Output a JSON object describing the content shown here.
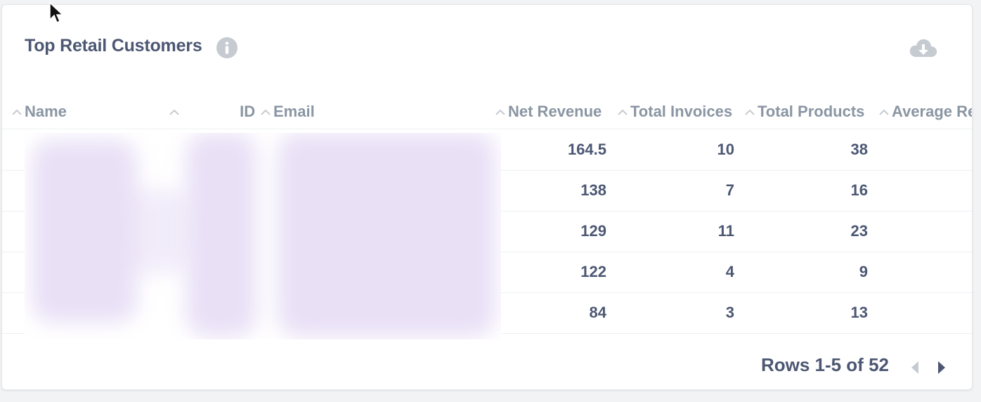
{
  "card": {
    "title": "Top Retail Customers"
  },
  "icons": {
    "info": "info-icon",
    "download": "download-icon",
    "sort": "chevron-up-icon",
    "prev": "triangle-left-icon",
    "next": "triangle-right-icon"
  },
  "colors": {
    "text": "#4c5773",
    "header": "#8a96a3",
    "icon": "#c6cbd1",
    "blur": "#e9e0f6"
  },
  "table": {
    "columns": [
      {
        "key": "name",
        "label": "Name"
      },
      {
        "key": "id",
        "label": "ID"
      },
      {
        "key": "email",
        "label": "Email"
      },
      {
        "key": "net_revenue",
        "label": "Net Revenue"
      },
      {
        "key": "total_invoices",
        "label": "Total Invoices"
      },
      {
        "key": "total_products",
        "label": "Total Products"
      },
      {
        "key": "average",
        "label": "Average Re"
      }
    ],
    "rows": [
      {
        "net_revenue": "164.5",
        "total_invoices": "10",
        "total_products": "38"
      },
      {
        "net_revenue": "138",
        "total_invoices": "7",
        "total_products": "16"
      },
      {
        "net_revenue": "129",
        "total_invoices": "11",
        "total_products": "23"
      },
      {
        "net_revenue": "122",
        "total_invoices": "4",
        "total_products": "9"
      },
      {
        "net_revenue": "84",
        "total_invoices": "3",
        "total_products": "13"
      }
    ]
  },
  "pagination": {
    "label": "Rows 1-5 of 52"
  }
}
